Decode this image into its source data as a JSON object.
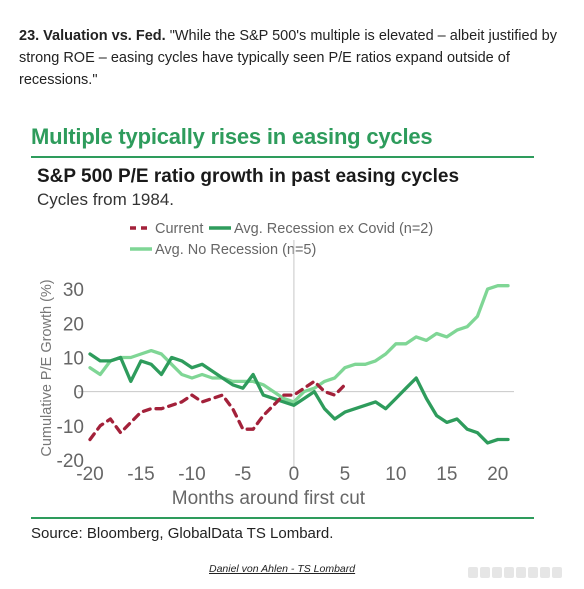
{
  "intro": {
    "lead": "23. Valuation vs. Fed.",
    "quote": " \"While the S&P 500's multiple is elevated – albeit justified by strong ROE – easing cycles have typically seen P/E ratios expand outside of recessions.\""
  },
  "card": {
    "headline": "Multiple typically rises in easing cycles",
    "source": "Source: Bloomberg, GlobalData TS Lombard.",
    "credit": "Daniel von Ahlen - TS Lombard",
    "accent_color": "#2e9c5c"
  },
  "chart_data": {
    "type": "line",
    "title": "S&P 500 P/E ratio growth in past easing cycles",
    "subtitle": "Cycles from 1984.",
    "xlabel": "Months around first cut",
    "ylabel": "Cumulative P/E Growth (%)",
    "xlim": [
      -20,
      21
    ],
    "ylim": [
      -20,
      35
    ],
    "xticks": [
      -20,
      -15,
      -10,
      -5,
      0,
      5,
      10,
      15,
      20
    ],
    "yticks": [
      -20,
      -10,
      0,
      10,
      20,
      30
    ],
    "reference_lines": {
      "x": 0,
      "y": 0
    },
    "legend_position": "top",
    "series": [
      {
        "name": "Current",
        "color": "#a3213a",
        "style": "dashed",
        "points": [
          [
            -20,
            -14
          ],
          [
            -19,
            -10
          ],
          [
            -18,
            -8
          ],
          [
            -17,
            -12
          ],
          [
            -16,
            -9
          ],
          [
            -15,
            -6
          ],
          [
            -14,
            -5
          ],
          [
            -13,
            -5
          ],
          [
            -12,
            -4
          ],
          [
            -11,
            -3
          ],
          [
            -10,
            -1
          ],
          [
            -9,
            -3
          ],
          [
            -8,
            -2
          ],
          [
            -7,
            -1
          ],
          [
            -6,
            -5
          ],
          [
            -5,
            -11
          ],
          [
            -4,
            -11
          ],
          [
            -3,
            -7
          ],
          [
            -2,
            -4
          ],
          [
            -1,
            -1
          ],
          [
            0,
            -1
          ],
          [
            1,
            1
          ],
          [
            2,
            3
          ],
          [
            3,
            0
          ],
          [
            4,
            -1
          ],
          [
            5,
            2
          ]
        ]
      },
      {
        "name": "Avg. Recession ex Covid (n=2)",
        "color": "#2e9c5c",
        "style": "solid",
        "points": [
          [
            -20,
            11
          ],
          [
            -19,
            9
          ],
          [
            -18,
            9
          ],
          [
            -17,
            10
          ],
          [
            -16,
            3
          ],
          [
            -15,
            9
          ],
          [
            -14,
            8
          ],
          [
            -13,
            5
          ],
          [
            -12,
            10
          ],
          [
            -11,
            9
          ],
          [
            -10,
            7
          ],
          [
            -9,
            8
          ],
          [
            -8,
            6
          ],
          [
            -7,
            4
          ],
          [
            -6,
            2
          ],
          [
            -5,
            1
          ],
          [
            -4,
            5
          ],
          [
            -3,
            -1
          ],
          [
            -2,
            -2
          ],
          [
            -1,
            -3
          ],
          [
            0,
            -4
          ],
          [
            1,
            -2
          ],
          [
            2,
            0
          ],
          [
            3,
            -5
          ],
          [
            4,
            -8
          ],
          [
            5,
            -6
          ],
          [
            6,
            -5
          ],
          [
            7,
            -4
          ],
          [
            8,
            -3
          ],
          [
            9,
            -5
          ],
          [
            10,
            -2
          ],
          [
            11,
            1
          ],
          [
            12,
            4
          ],
          [
            13,
            -2
          ],
          [
            14,
            -7
          ],
          [
            15,
            -9
          ],
          [
            16,
            -8
          ],
          [
            17,
            -11
          ],
          [
            18,
            -12
          ],
          [
            19,
            -15
          ],
          [
            20,
            -14
          ],
          [
            21,
            -14
          ]
        ]
      },
      {
        "name": "Avg. No Recession (n=5)",
        "color": "#7fd695",
        "style": "solid",
        "points": [
          [
            -20,
            7
          ],
          [
            -19,
            5
          ],
          [
            -18,
            9
          ],
          [
            -17,
            10
          ],
          [
            -16,
            10
          ],
          [
            -15,
            11
          ],
          [
            -14,
            12
          ],
          [
            -13,
            11
          ],
          [
            -12,
            8
          ],
          [
            -11,
            5
          ],
          [
            -10,
            4
          ],
          [
            -9,
            5
          ],
          [
            -8,
            4
          ],
          [
            -7,
            4
          ],
          [
            -6,
            3
          ],
          [
            -5,
            3
          ],
          [
            -4,
            3
          ],
          [
            -3,
            2
          ],
          [
            -2,
            0
          ],
          [
            -1,
            -2
          ],
          [
            0,
            -3
          ],
          [
            1,
            0
          ],
          [
            2,
            1
          ],
          [
            3,
            3
          ],
          [
            4,
            4
          ],
          [
            5,
            7
          ],
          [
            6,
            8
          ],
          [
            7,
            8
          ],
          [
            8,
            9
          ],
          [
            9,
            11
          ],
          [
            10,
            14
          ],
          [
            11,
            14
          ],
          [
            12,
            16
          ],
          [
            13,
            15
          ],
          [
            14,
            17
          ],
          [
            15,
            16
          ],
          [
            16,
            18
          ],
          [
            17,
            19
          ],
          [
            18,
            22
          ],
          [
            19,
            30
          ],
          [
            20,
            31
          ],
          [
            21,
            31
          ]
        ]
      }
    ]
  }
}
